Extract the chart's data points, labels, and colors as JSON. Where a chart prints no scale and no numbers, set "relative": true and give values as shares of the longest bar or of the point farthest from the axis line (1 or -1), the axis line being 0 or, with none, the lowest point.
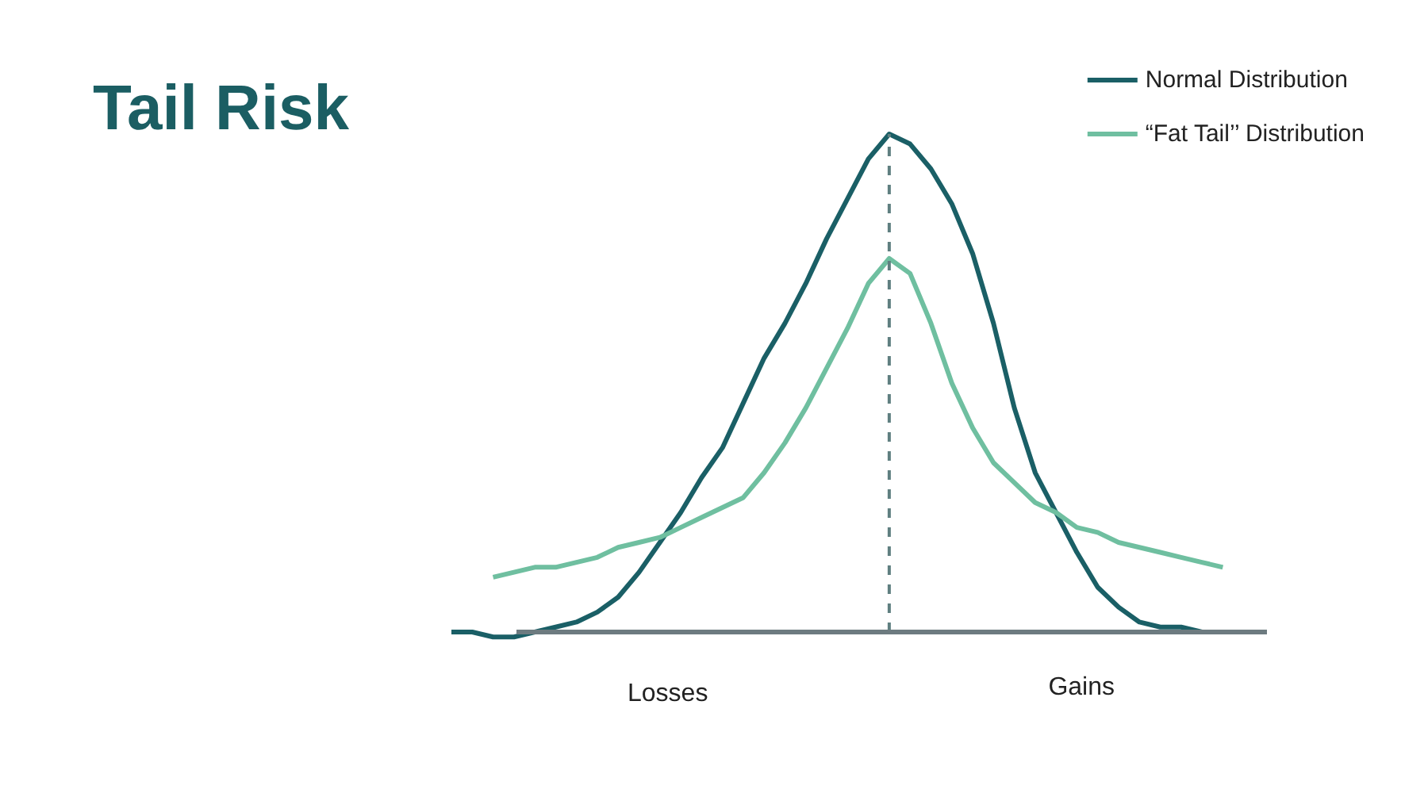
{
  "chart_data": {
    "type": "line",
    "title": "Tail Risk",
    "relative": true,
    "categories": [
      null,
      null,
      null,
      null,
      null,
      null,
      null,
      null,
      null,
      null,
      null,
      null,
      null,
      null,
      null,
      null,
      null,
      null,
      null,
      null,
      null,
      null,
      null,
      null,
      null,
      null,
      null,
      null,
      null,
      null,
      null,
      null,
      null,
      null,
      null,
      null,
      null,
      null,
      null,
      null
    ],
    "series": [
      {
        "name": "Normal Distribution",
        "color": "#1a5f66",
        "values": [
          0,
          0,
          -0.01,
          -0.01,
          0,
          0.01,
          0.02,
          0.04,
          0.07,
          0.12,
          0.18,
          0.24,
          0.31,
          0.37,
          0.46,
          0.55,
          0.62,
          0.7,
          0.79,
          0.87,
          0.95,
          1.0,
          0.98,
          0.93,
          0.86,
          0.76,
          0.62,
          0.45,
          0.32,
          0.24,
          0.16,
          0.09,
          0.05,
          0.02,
          0.01,
          0.01,
          0,
          0,
          0,
          0
        ]
      },
      {
        "name": "“Fat Tail’’ Distribution",
        "color": "#6fbfa0",
        "values": [
          null,
          null,
          0.11,
          0.12,
          0.13,
          0.13,
          0.14,
          0.15,
          0.17,
          0.18,
          0.19,
          0.21,
          0.23,
          0.25,
          0.27,
          0.32,
          0.38,
          0.45,
          0.53,
          0.61,
          0.7,
          0.75,
          0.72,
          0.62,
          0.5,
          0.41,
          0.34,
          0.3,
          0.26,
          0.24,
          0.21,
          0.2,
          0.18,
          0.17,
          0.16,
          0.15,
          0.14,
          0.13,
          null,
          null
        ]
      }
    ],
    "annotations": [
      "Losses",
      "Gains"
    ],
    "legend": "top right",
    "grid": false,
    "marker": "none",
    "line_style": "solid"
  }
}
